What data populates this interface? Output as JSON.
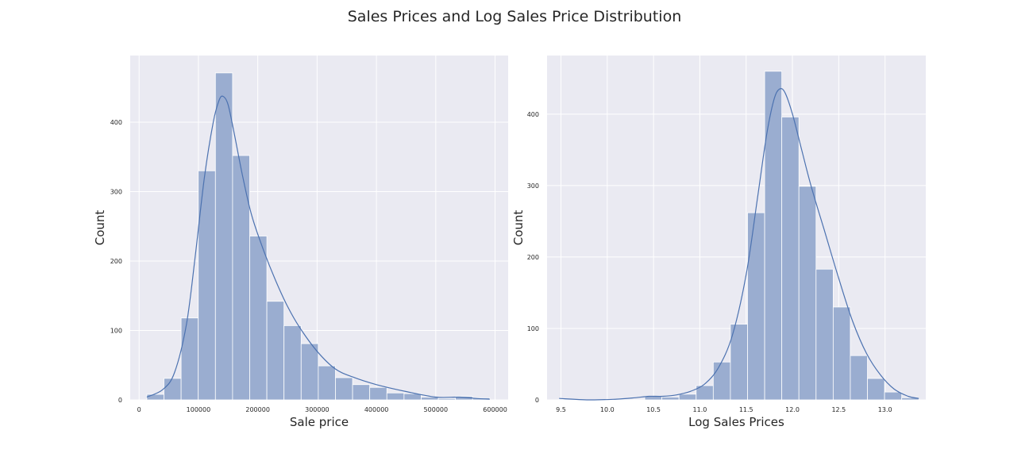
{
  "figure": {
    "title": "Sales Prices and Log Sales Price Distribution"
  },
  "colors": {
    "axes_bg": "#eaeaf2",
    "grid": "#ffffff",
    "bar_fill": "#9aadd0",
    "bar_edge": "#ffffff",
    "kde_line": "#4c72b0",
    "text": "#262626"
  },
  "chart_data": [
    {
      "type": "bar",
      "subtype": "histogram",
      "xlabel": "Sale price",
      "ylabel": "Count",
      "xlim": [
        -15000,
        622000
      ],
      "ylim": [
        0,
        496
      ],
      "xticks": [
        0,
        100000,
        200000,
        300000,
        400000,
        500000,
        600000
      ],
      "xtick_labels": [
        "0",
        "100000",
        "200000",
        "300000",
        "400000",
        "500000",
        "600000"
      ],
      "yticks": [
        0,
        100,
        200,
        300,
        400
      ],
      "ytick_labels": [
        "0",
        "100",
        "200",
        "300",
        "400"
      ],
      "grid": true,
      "bin_edges": [
        13000,
        41900,
        70800,
        99700,
        128600,
        157500,
        186400,
        215300,
        244200,
        273100,
        302000,
        330900,
        359800,
        388700,
        417600,
        446500,
        475400,
        504300,
        533200,
        562100,
        591000
      ],
      "counts": [
        8,
        31,
        118,
        330,
        471,
        352,
        236,
        142,
        107,
        81,
        49,
        32,
        22,
        18,
        10,
        9,
        4,
        2,
        5,
        3
      ],
      "kde": {
        "x": [
          13000,
          40000,
          60000,
          80000,
          95000,
          110000,
          125000,
          135000,
          142000,
          150000,
          160000,
          175000,
          190000,
          210000,
          230000,
          250000,
          270000,
          300000,
          330000,
          360000,
          400000,
          450000,
          500000,
          540000,
          570000,
          591000
        ],
        "y": [
          4,
          15,
          40,
          110,
          210,
          320,
          400,
          432,
          437,
          425,
          385,
          320,
          265,
          215,
          172,
          135,
          105,
          70,
          45,
          33,
          22,
          12,
          4,
          4,
          2,
          1
        ]
      }
    },
    {
      "type": "bar",
      "subtype": "histogram",
      "xlabel": "Log Sales Prices",
      "ylabel": "Count",
      "xlim": [
        9.35,
        13.44
      ],
      "ylim": [
        0,
        482
      ],
      "xticks": [
        9.5,
        10.0,
        10.5,
        11.0,
        11.5,
        12.0,
        12.5,
        13.0
      ],
      "xtick_labels": [
        "9.5",
        "10.0",
        "10.5",
        "11.0",
        "11.5",
        "12.0",
        "12.5",
        "13.0"
      ],
      "yticks": [
        0,
        100,
        200,
        300,
        400
      ],
      "ytick_labels": [
        "0",
        "100",
        "200",
        "300",
        "400"
      ],
      "grid": true,
      "bin_edges": [
        9.48,
        9.665,
        9.85,
        10.035,
        10.22,
        10.405,
        10.59,
        10.775,
        10.96,
        11.145,
        11.33,
        11.515,
        11.7,
        11.885,
        12.07,
        12.255,
        12.44,
        12.625,
        12.81,
        12.995,
        13.18,
        13.365
      ],
      "counts": [
        1,
        0,
        0,
        0,
        0,
        5,
        4,
        8,
        20,
        53,
        106,
        262,
        460,
        396,
        299,
        183,
        130,
        62,
        30,
        11,
        3
      ],
      "kde": {
        "x": [
          9.48,
          9.8,
          10.1,
          10.3,
          10.45,
          10.6,
          10.75,
          10.9,
          11.05,
          11.2,
          11.35,
          11.5,
          11.62,
          11.72,
          11.8,
          11.86,
          11.92,
          12.0,
          12.1,
          12.2,
          12.35,
          12.5,
          12.65,
          12.8,
          12.95,
          13.1,
          13.25,
          13.365
        ],
        "y": [
          2,
          0,
          1,
          3,
          5,
          5,
          7,
          12,
          22,
          45,
          90,
          175,
          280,
          370,
          420,
          435,
          430,
          400,
          350,
          300,
          235,
          170,
          110,
          65,
          35,
          15,
          5,
          2
        ]
      }
    }
  ]
}
